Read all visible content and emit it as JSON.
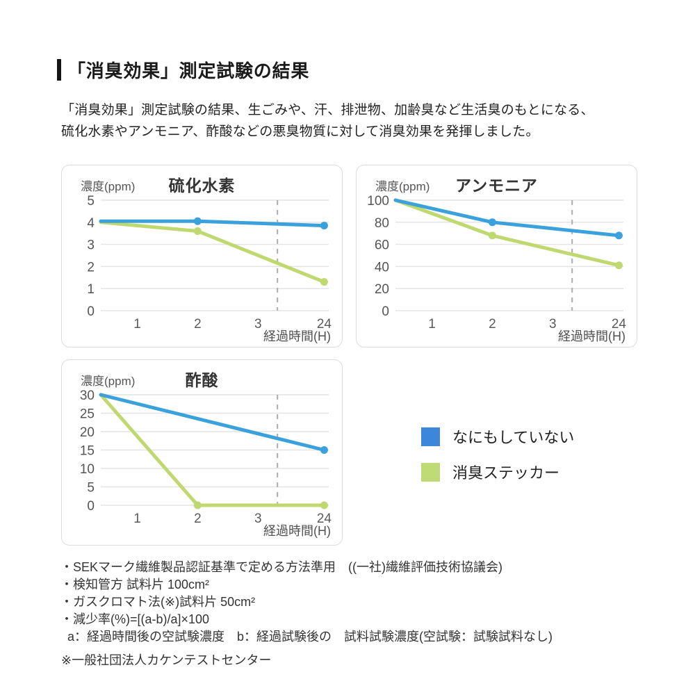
{
  "header": {
    "title": "「消臭効果」測定試験の結果"
  },
  "lead": {
    "line1": "「消臭効果」測定試験の結果、生ごみや、汗、排泄物、加齢臭など生活臭のもとになる、",
    "line2": "硫化水素やアンモニア、酢酸などの悪臭物質に対して消臭効果を発揮しました。"
  },
  "colors": {
    "line_blue": "#3BA1DC",
    "line_green": "#BFD870",
    "legend_blue": "#3C86DB",
    "legend_green": "#BEDB76",
    "grid": "#E4E4E4",
    "dashed": "#ACACAC"
  },
  "chart_data": [
    {
      "type": "line",
      "title": "硫化水素",
      "y_axis_label": "濃度(ppm)",
      "x_axis_label": "経過時間(H)",
      "y_max": 5,
      "y_ticks": [
        5,
        4,
        3,
        2,
        1,
        0
      ],
      "x_ticks": [
        "1",
        "2",
        "3",
        "24"
      ],
      "dashed_guide": true,
      "series": [
        {
          "name": "なにもしていない",
          "color": "blue",
          "points": [
            [
              0,
              4.05
            ],
            [
              2,
              4.05
            ],
            [
              24,
              3.85
            ]
          ]
        },
        {
          "name": "消臭ステッカー",
          "color": "green",
          "points": [
            [
              0,
              4.0
            ],
            [
              2,
              3.6
            ],
            [
              24,
              1.3
            ]
          ]
        }
      ]
    },
    {
      "type": "line",
      "title": "アンモニア",
      "y_axis_label": "濃度(ppm)",
      "x_axis_label": "経過時間(H)",
      "y_max": 100,
      "y_ticks": [
        100,
        80,
        60,
        40,
        20,
        0
      ],
      "x_ticks": [
        "1",
        "2",
        "3",
        "24"
      ],
      "dashed_guide": true,
      "series": [
        {
          "name": "なにもしていない",
          "color": "blue",
          "points": [
            [
              0,
              100
            ],
            [
              2,
              80
            ],
            [
              24,
              68
            ]
          ]
        },
        {
          "name": "消臭ステッカー",
          "color": "green",
          "points": [
            [
              0,
              100
            ],
            [
              2,
              68
            ],
            [
              24,
              41
            ]
          ]
        }
      ]
    },
    {
      "type": "line",
      "title": "酢酸",
      "y_axis_label": "濃度(ppm)",
      "x_axis_label": "経過時間(H)",
      "y_max": 30,
      "y_ticks": [
        30,
        25,
        20,
        15,
        10,
        5,
        0
      ],
      "x_ticks": [
        "1",
        "2",
        "3",
        "24"
      ],
      "dashed_guide": true,
      "series": [
        {
          "name": "なにもしていない",
          "color": "blue",
          "points": [
            [
              0,
              30
            ],
            [
              24,
              15
            ]
          ]
        },
        {
          "name": "消臭ステッカー",
          "color": "green",
          "points": [
            [
              0,
              30
            ],
            [
              2,
              0
            ],
            [
              24,
              0
            ]
          ]
        }
      ]
    }
  ],
  "legend": {
    "items": [
      {
        "label": "なにもしていない",
        "color_key": "legend_blue"
      },
      {
        "label": "消臭ステッカー",
        "color_key": "legend_green"
      }
    ]
  },
  "footnotes": {
    "items": [
      "・SEKマーク繊維製品認証基準で定める方法準用　((一社)繊維評価技術協議会)",
      "・検知管方 試料片 100cm²",
      "・ガスクロマト法(※)試料片 50cm²",
      "・減少率(%)=[(a-b)/a]×100",
      "a：経過時間後の空試験濃度　b：経過試験後の　試料試験濃度(空試験：試験試料なし)"
    ],
    "asterisk_note": "※一般社団法人カケンテストセンター"
  }
}
